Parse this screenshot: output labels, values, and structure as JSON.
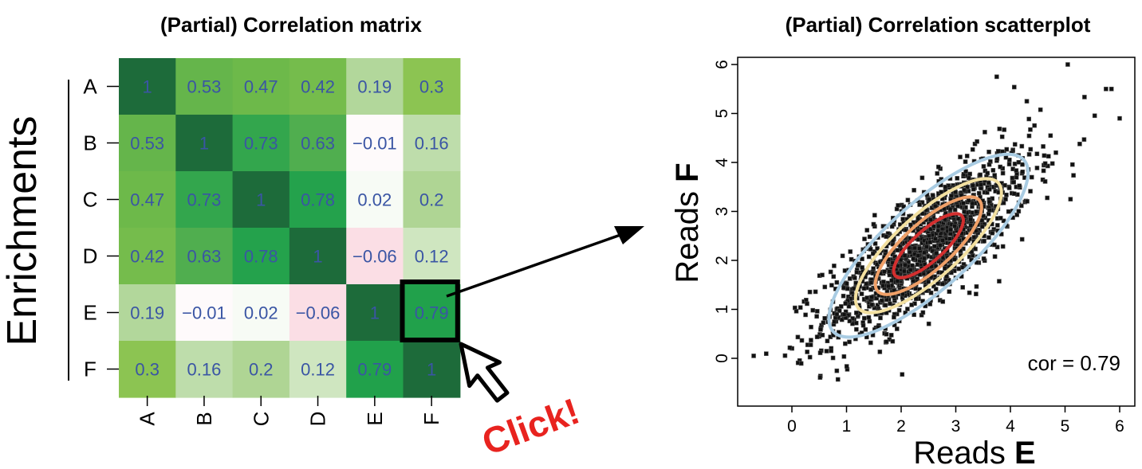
{
  "chart_data": [
    {
      "type": "heatmap",
      "title": "(Partial) Correlation matrix",
      "ylabel": "Enrichments",
      "rows": [
        "A",
        "B",
        "C",
        "D",
        "E",
        "F"
      ],
      "columns": [
        "A",
        "B",
        "C",
        "D",
        "E",
        "F"
      ],
      "values": [
        [
          1,
          0.53,
          0.47,
          0.42,
          0.19,
          0.3
        ],
        [
          0.53,
          1,
          0.73,
          0.63,
          -0.01,
          0.16
        ],
        [
          0.47,
          0.73,
          1,
          0.78,
          0.02,
          0.2
        ],
        [
          0.42,
          0.63,
          0.78,
          1,
          -0.06,
          0.12
        ],
        [
          0.19,
          -0.01,
          0.02,
          -0.06,
          1,
          0.79
        ],
        [
          0.3,
          0.16,
          0.2,
          0.12,
          0.79,
          1
        ]
      ],
      "value_labels": [
        [
          "1",
          "0.53",
          "0.47",
          "0.42",
          "0.19",
          "0.3"
        ],
        [
          "0.53",
          "1",
          "0.73",
          "0.63",
          "−0.01",
          "0.16"
        ],
        [
          "0.47",
          "0.73",
          "1",
          "0.78",
          "0.02",
          "0.2"
        ],
        [
          "0.42",
          "0.63",
          "0.78",
          "1",
          "−0.06",
          "0.12"
        ],
        [
          "0.19",
          "−0.01",
          "0.02",
          "−0.06",
          "1",
          "0.79"
        ],
        [
          "0.3",
          "0.16",
          "0.2",
          "0.12",
          "0.79",
          "1"
        ]
      ],
      "highlighted_cell": {
        "row": "E",
        "column": "F"
      },
      "colors": {
        "positive_high": "#1d6b3a",
        "positive_mid": "#1fa04b",
        "zero": "#ffffff",
        "negative": "#f9d3dc",
        "value_text": "#3a55a4",
        "highlight_border": "#000000"
      }
    },
    {
      "type": "scatter",
      "title": "(Partial) Correlation scatterplot",
      "xlabel_prefix": "Reads ",
      "xlabel_bold": "E",
      "ylabel_prefix": "Reads ",
      "ylabel_bold": "F",
      "xlim": [
        -0.9,
        6.3
      ],
      "ylim": [
        -0.75,
        6.3
      ],
      "x_ticks": [
        "0",
        "1",
        "2",
        "3",
        "4",
        "5",
        "6"
      ],
      "y_ticks": [
        "0",
        "1",
        "2",
        "3",
        "4",
        "5",
        "6"
      ],
      "annotation": "cor = 0.79",
      "correlation": 0.79,
      "center": [
        2.5,
        2.3
      ],
      "n_points": 1400,
      "outliers": [
        [
          5.05,
          6.0
        ],
        [
          5.75,
          5.5
        ],
        [
          5.85,
          5.5
        ],
        [
          6.0,
          4.9
        ],
        [
          5.1,
          3.25
        ],
        [
          3.75,
          5.75
        ],
        [
          -0.7,
          0.05
        ],
        [
          4.3,
          5.25
        ]
      ],
      "contours": [
        {
          "level": "outer",
          "color": "#a9cce3",
          "rx": 2.35,
          "ry": 0.78
        },
        {
          "level": "mid",
          "color": "#f3e0a0",
          "rx": 1.72,
          "ry": 0.58
        },
        {
          "level": "inner",
          "color": "#f0a068",
          "rx": 1.25,
          "ry": 0.43
        },
        {
          "level": "core",
          "color": "#d32f2f",
          "rx": 0.82,
          "ry": 0.28
        }
      ],
      "contour_angle_deg": 42
    }
  ],
  "callout": {
    "label": "Click!",
    "color": "#e8231f"
  }
}
